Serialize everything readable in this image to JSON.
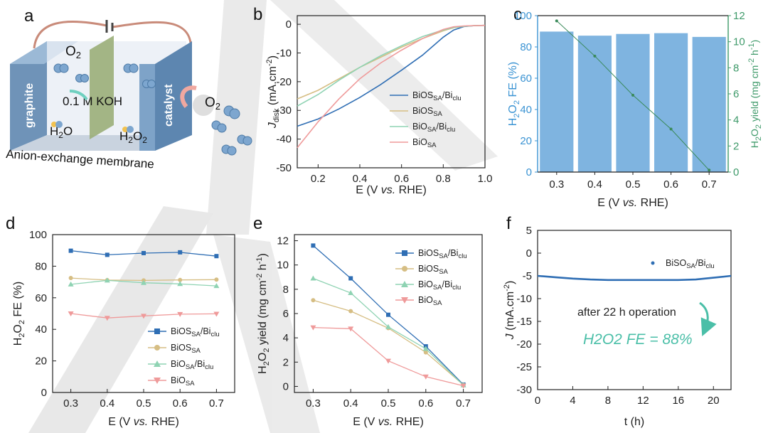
{
  "panel_letters": [
    "a",
    "b",
    "c",
    "d",
    "e",
    "f"
  ],
  "colors": {
    "blue": "#2f6eb4",
    "gold": "#d6be84",
    "green": "#8fd3b3",
    "pink": "#ef9a9a",
    "bar": "#7fb4e0",
    "line_c": "#3a8a5a",
    "axis_c_left": "#3a93d3",
    "axis_c_right": "#3f9a6a",
    "teal": "#4bbfa8"
  },
  "schematic": {
    "o2_top": "O2",
    "electrolyte": "0.1 M KOH",
    "left_electrode": "graphite",
    "right_electrode": "catalyst",
    "h2o": "H2O",
    "h2o2": "H2O2",
    "o2_right": "O2",
    "membrane": "Anion-exchange membrane"
  },
  "chart_data": [
    {
      "panel": "b",
      "type": "line",
      "xlabel_parts": [
        "E (V ",
        "vs.",
        " RHE)"
      ],
      "ylabel_parts": [
        "J",
        "disk",
        " (mA.cm",
        "-2",
        ")"
      ],
      "xlim": [
        0.1,
        1.0
      ],
      "ylim": [
        -50,
        3
      ],
      "xticks": [
        "0.2",
        "0.4",
        "0.6",
        "0.8",
        "1.0"
      ],
      "yticks": [
        "0",
        "-10",
        "-20",
        "-30",
        "-40",
        "-50"
      ],
      "series": [
        {
          "name": "BiOS_SA/Bi_clu",
          "legend": [
            "BiOS",
            "SA",
            "/Bi",
            "clu"
          ],
          "color": "blue",
          "x": [
            0.1,
            0.2,
            0.3,
            0.4,
            0.5,
            0.6,
            0.7,
            0.8,
            0.85,
            0.9,
            0.95,
            1.0
          ],
          "y": [
            -35.5,
            -33,
            -29.5,
            -25.5,
            -21,
            -16,
            -10.8,
            -4.5,
            -2,
            -0.8,
            -0.5,
            -0.4
          ]
        },
        {
          "name": "BiOS_SA",
          "legend": [
            "BiOS",
            "SA",
            "",
            ""
          ],
          "color": "gold",
          "x": [
            0.1,
            0.2,
            0.3,
            0.4,
            0.5,
            0.6,
            0.7,
            0.8,
            0.85,
            0.9,
            0.95,
            1.0
          ],
          "y": [
            -26,
            -23,
            -19,
            -15,
            -11.5,
            -8,
            -5,
            -2.3,
            -1.2,
            -0.7,
            -0.5,
            -0.4
          ]
        },
        {
          "name": "BiOSA/Bi_clu",
          "legend": [
            "BiO",
            "SA",
            "/Bi",
            "clu"
          ],
          "color": "green",
          "x": [
            0.1,
            0.2,
            0.3,
            0.4,
            0.5,
            0.6,
            0.7,
            0.8,
            0.85,
            0.9,
            0.95,
            1.0
          ],
          "y": [
            -28.5,
            -24.5,
            -19.5,
            -15,
            -11,
            -7.5,
            -4.3,
            -2,
            -1.1,
            -0.7,
            -0.5,
            -0.4
          ]
        },
        {
          "name": "BiO_SA",
          "legend": [
            "BiO",
            "SA",
            "",
            ""
          ],
          "color": "pink",
          "x": [
            0.1,
            0.2,
            0.3,
            0.4,
            0.5,
            0.6,
            0.7,
            0.8,
            0.85,
            0.9,
            0.95,
            1.0
          ],
          "y": [
            -43,
            -34,
            -26,
            -19,
            -13.5,
            -9,
            -5,
            -1.8,
            -0.9,
            -0.6,
            -0.5,
            -0.4
          ]
        }
      ]
    },
    {
      "panel": "c",
      "type": "bar",
      "categories": [
        "0.3",
        "0.4",
        "0.5",
        "0.6",
        "0.7"
      ],
      "values": [
        89.8,
        87.2,
        88.3,
        88.8,
        86.4
      ],
      "line_values": [
        11.6,
        8.9,
        5.9,
        3.3,
        0.15
      ],
      "ylim": [
        0,
        100
      ],
      "y2lim": [
        0,
        12
      ],
      "yticks": [
        "0",
        "20",
        "40",
        "60",
        "80",
        "100"
      ],
      "y2ticks": [
        "0",
        "2",
        "4",
        "6",
        "8",
        "10",
        "12"
      ],
      "xlabel_parts": [
        "E (V ",
        "vs.",
        " RHE)"
      ],
      "ylabel_parts": [
        "H",
        "2",
        "O",
        "2",
        " FE (%)"
      ],
      "y2label_parts": [
        "H",
        "2",
        "O",
        "2",
        " yield (mg cm",
        "-2",
        " h",
        "-1",
        ")"
      ]
    },
    {
      "panel": "d",
      "type": "line",
      "x": [
        0.3,
        0.4,
        0.5,
        0.6,
        0.7
      ],
      "xlim": [
        0.25,
        0.75
      ],
      "ylim": [
        0,
        100
      ],
      "xticks": [
        "0.3",
        "0.4",
        "0.5",
        "0.6",
        "0.7"
      ],
      "yticks": [
        "0",
        "20",
        "40",
        "60",
        "80",
        "100"
      ],
      "xlabel_parts": [
        "E (V ",
        "vs.",
        " RHE)"
      ],
      "ylabel_parts": [
        "H",
        "2",
        "O",
        "2",
        " FE (%)"
      ],
      "series": [
        {
          "name": "BiOS_SA/Bi_clu",
          "legend": [
            "BiOS",
            "SA",
            "/Bi",
            "clu"
          ],
          "color": "blue",
          "marker": "square",
          "y": [
            89.8,
            87.2,
            88.3,
            88.8,
            86.4
          ]
        },
        {
          "name": "BiOS_SA",
          "legend": [
            "BiOS",
            "SA",
            "",
            ""
          ],
          "color": "gold",
          "marker": "circle",
          "y": [
            72.5,
            71.2,
            71,
            71.3,
            71.5
          ]
        },
        {
          "name": "BiOSA/Bi_clu",
          "legend": [
            "BiO",
            "SA",
            "/Bi",
            "clu"
          ],
          "color": "green",
          "marker": "triangle",
          "y": [
            68.5,
            71,
            69.5,
            68.8,
            67.5
          ]
        },
        {
          "name": "BiO_SA",
          "legend": [
            "BiO",
            "SA",
            "",
            ""
          ],
          "color": "pink",
          "marker": "tri-down",
          "y": [
            50,
            47.2,
            48.5,
            49.6,
            49.8
          ]
        }
      ]
    },
    {
      "panel": "e",
      "type": "line",
      "x": [
        0.3,
        0.4,
        0.5,
        0.6,
        0.7
      ],
      "xlim": [
        0.25,
        0.75
      ],
      "ylim": [
        -0.5,
        12.5
      ],
      "xticks": [
        "0.3",
        "0.4",
        "0.5",
        "0.6",
        "0.7"
      ],
      "yticks": [
        "0",
        "2",
        "4",
        "6",
        "8",
        "10",
        "12"
      ],
      "xlabel_parts": [
        "E (V ",
        "vs.",
        " RHE)"
      ],
      "ylabel_parts": [
        "H",
        "2",
        "O",
        "2",
        " yield (mg cm",
        "-2",
        " h",
        "-1",
        ")"
      ],
      "series": [
        {
          "name": "BiOS_SA/Bi_clu",
          "legend": [
            "BiOS",
            "SA",
            "/Bi",
            "clu"
          ],
          "color": "blue",
          "marker": "square",
          "y": [
            11.6,
            8.9,
            5.9,
            3.3,
            0.15
          ]
        },
        {
          "name": "BiOS_SA",
          "legend": [
            "BiOS",
            "SA",
            "",
            ""
          ],
          "color": "gold",
          "marker": "circle",
          "y": [
            7.1,
            6.2,
            4.8,
            2.8,
            0.12
          ]
        },
        {
          "name": "BiOSA/Bi_clu",
          "legend": [
            "BiO",
            "SA",
            "/Bi",
            "clu"
          ],
          "color": "green",
          "marker": "triangle",
          "y": [
            8.9,
            7.7,
            4.9,
            3.1,
            0.1
          ]
        },
        {
          "name": "BiO_SA",
          "legend": [
            "BiO",
            "SA",
            "",
            ""
          ],
          "color": "pink",
          "marker": "tri-down",
          "y": [
            4.85,
            4.75,
            2.1,
            0.8,
            0.05
          ]
        }
      ]
    },
    {
      "panel": "f",
      "type": "scatter",
      "xlim": [
        0,
        22
      ],
      "ylim": [
        -30,
        5
      ],
      "xticks": [
        "0",
        "4",
        "8",
        "12",
        "16",
        "20"
      ],
      "yticks": [
        "5",
        "0",
        "-5",
        "-10",
        "-15",
        "-20",
        "-25",
        "-30"
      ],
      "xlabel": "t (h)",
      "ylabel_parts": [
        "J",
        " (mA.cm",
        "-2",
        ")"
      ],
      "series": [
        {
          "name": "BiSO_SA/Bi_clu",
          "legend": [
            "BiSO",
            "SA",
            "/Bi",
            "clu"
          ],
          "color": "blue",
          "x": [
            0,
            2,
            4,
            6,
            8,
            10,
            12,
            14,
            16,
            18,
            20,
            22
          ],
          "y": [
            -5,
            -5.3,
            -5.6,
            -5.8,
            -5.9,
            -5.9,
            -5.9,
            -5.9,
            -5.9,
            -5.8,
            -5.4,
            -5
          ]
        }
      ],
      "annotation_text": "after 22 h operation",
      "annotation_highlight": "H2O2 FE = 88%"
    }
  ]
}
